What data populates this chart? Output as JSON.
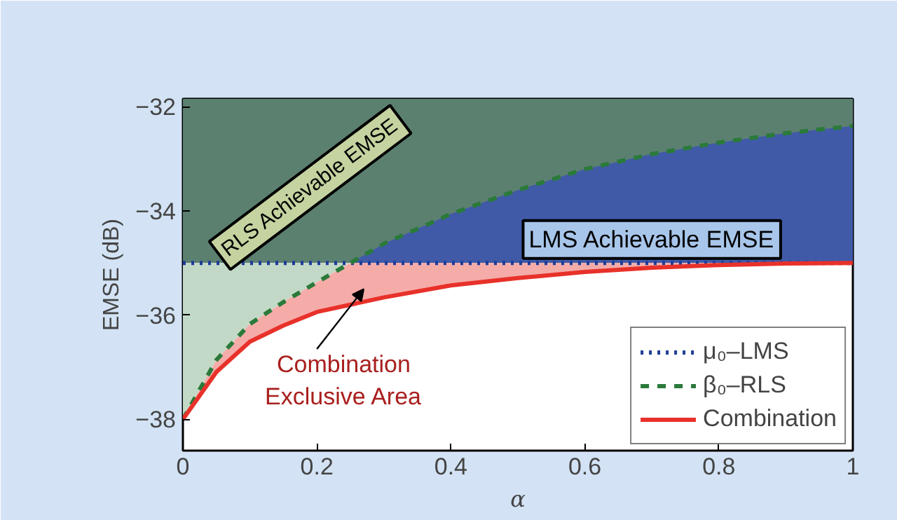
{
  "chart_data": {
    "type": "line",
    "xlabel": "α",
    "ylabel": "EMSE (dB)",
    "x": [
      0,
      0.05,
      0.1,
      0.15,
      0.2,
      0.25,
      0.3,
      0.4,
      0.5,
      0.6,
      0.7,
      0.8,
      0.9,
      1
    ],
    "series": [
      {
        "name": "μ₀–LMS",
        "color": "#1f3d99",
        "line_style": "dotted",
        "values": [
          -35,
          -35,
          -35,
          -35,
          -35,
          -35,
          -35,
          -35,
          -35,
          -35,
          -35,
          -35,
          -35,
          -35
        ],
        "lower": [
          null,
          null,
          null,
          null,
          null,
          -35,
          -35,
          -35,
          -35,
          -35,
          -35,
          -35,
          -35,
          -35
        ],
        "upper": [
          null,
          null,
          null,
          null,
          null,
          -35,
          -34.63,
          -34.06,
          -33.6,
          -33.2,
          -32.91,
          -32.69,
          -32.51,
          -32.37
        ]
      },
      {
        "name": "β₀–RLS",
        "color": "#2a7a3a",
        "line_style": "dashed",
        "values": [
          -38,
          -36.86,
          -36.17,
          -35.75,
          -35.37,
          -35,
          -34.63,
          -34.06,
          -33.6,
          -33.2,
          -32.91,
          -32.69,
          -32.51,
          -32.37
        ],
        "lower": [
          -38,
          -36.86,
          -36.17,
          -35.75,
          -35.37,
          -35,
          null,
          null,
          null,
          null,
          null,
          null,
          null,
          null
        ],
        "upper": [
          -35,
          -35,
          -35,
          -35,
          -35,
          -35,
          null,
          null,
          null,
          null,
          null,
          null,
          null,
          null
        ]
      },
      {
        "name": "Combination",
        "color": "#e8312a",
        "line_style": "solid",
        "values": [
          -38,
          -37.09,
          -36.51,
          -36.2,
          -35.94,
          -35.8,
          -35.66,
          -35.43,
          -35.29,
          -35.17,
          -35.09,
          -35.04,
          -35.01,
          -35
        ],
        "lower": [
          -38,
          -37.09,
          -36.51,
          -36.2,
          -35.94,
          -35.8,
          -35.66,
          -35.43,
          -35.29,
          -35.17,
          -35.09,
          -35.04,
          -35.01,
          -35
        ],
        "upper": [
          -38,
          -36.86,
          -36.17,
          -35.75,
          -35.37,
          -35,
          -35,
          -35,
          -35,
          -35,
          -35,
          -35,
          -35,
          -35
        ]
      }
    ],
    "xlim": [
      0,
      1
    ],
    "ylim": [
      -38.6,
      -31.85
    ],
    "xticks": [
      0,
      0.2,
      0.4,
      0.6,
      0.8,
      1
    ],
    "yticks": [
      {
        "value": -38,
        "label": "−38"
      },
      {
        "value": -36,
        "label": "−36"
      },
      {
        "value": -34,
        "label": "−34"
      },
      {
        "value": -32,
        "label": "−32"
      }
    ],
    "annotations": [
      "RLS Achievable EMSE",
      "LMS Achievable EMSE",
      "Combination\nExclusive Area"
    ],
    "bands": [
      {
        "axis": "y",
        "from": -35,
        "to": -31.85,
        "color": "#5c8070"
      }
    ],
    "legend": "bottom right",
    "grid": false,
    "marker": "none"
  }
}
